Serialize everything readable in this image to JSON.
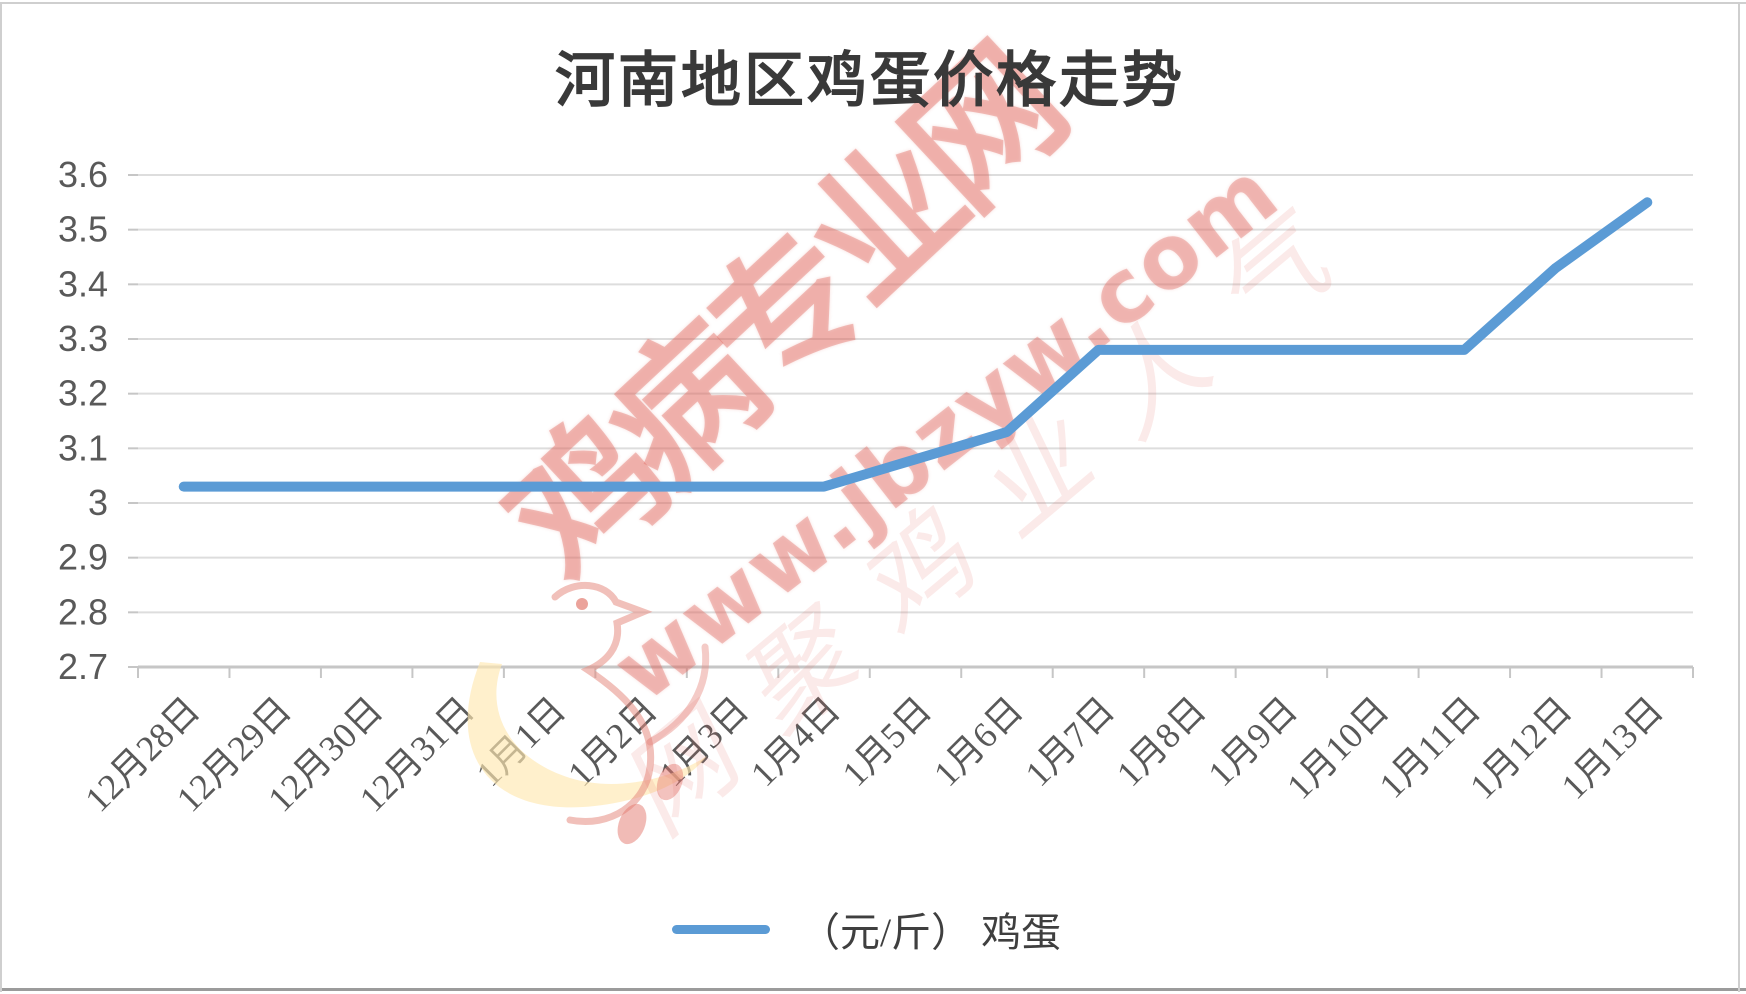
{
  "title": "河南地区鸡蛋价格走势",
  "legend": {
    "label": "（元/斤） 鸡蛋"
  },
  "watermark": {
    "site_name": "鸡病专业网",
    "url": "www.jbzyw.com",
    "slogan": "网聚鸡业人气",
    "color": "#E06860",
    "bird_logo": "chicken-bird-logo"
  },
  "chart_data": {
    "type": "line",
    "title": "河南地区鸡蛋价格走势",
    "categories": [
      "12月28日",
      "12月29日",
      "12月30日",
      "12月31日",
      "1月1日",
      "1月2日",
      "1月3日",
      "1月4日",
      "1月5日",
      "1月6日",
      "1月7日",
      "1月8日",
      "1月9日",
      "1月10日",
      "1月11日",
      "1月12日",
      "1月13日"
    ],
    "series": [
      {
        "name": "（元/斤） 鸡蛋",
        "values": [
          3.03,
          3.03,
          3.03,
          3.03,
          3.03,
          3.03,
          3.03,
          3.03,
          3.08,
          3.13,
          3.28,
          3.28,
          3.28,
          3.28,
          3.28,
          3.43,
          3.55
        ]
      }
    ],
    "ylim": [
      2.7,
      3.6
    ],
    "ytick_step": 0.1,
    "yticks": [
      3.6,
      3.5,
      3.4,
      3.3,
      3.2,
      3.1,
      3,
      2.9,
      2.8,
      2.7
    ],
    "grid": true,
    "legend_position": "bottom",
    "line_color": "#5B9BD5",
    "xlabel": "",
    "ylabel": ""
  }
}
